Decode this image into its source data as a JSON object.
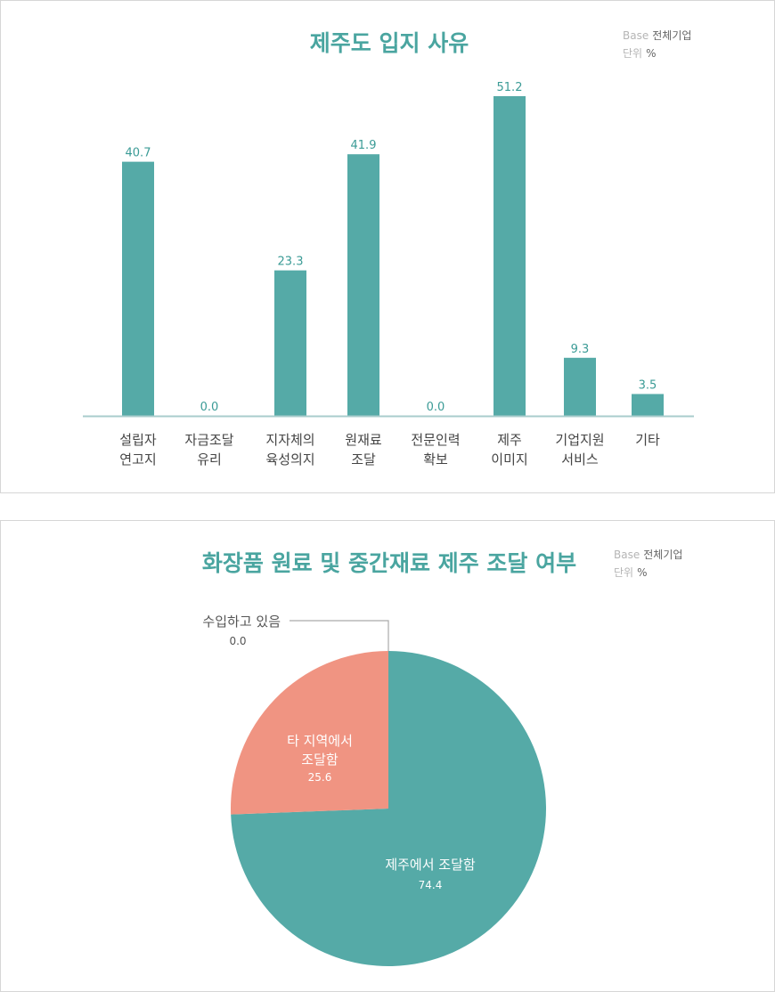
{
  "charts": {
    "location_reasons": {
      "title": "제주도 입지 사유",
      "base_label": "Base",
      "base_value": "전체기업",
      "unit_label": "단위",
      "unit_value": "%"
    },
    "sourcing": {
      "title": "화장품 원료 및 중간재료 제주 조달 여부",
      "base_label": "Base",
      "base_value": "전체기업",
      "unit_label": "단위",
      "unit_value": "%"
    }
  },
  "chart_data": [
    {
      "type": "bar",
      "title": "제주도 입지 사유",
      "unit": "%",
      "categories": [
        [
          "설립자",
          "연고지"
        ],
        [
          "자금조달",
          "유리"
        ],
        [
          "지자체의",
          "육성의지"
        ],
        [
          "원재료",
          "조달"
        ],
        [
          "전문인력",
          "확보"
        ],
        [
          "제주",
          "이미지"
        ],
        [
          "기업지원",
          "서비스"
        ],
        [
          "기타"
        ]
      ],
      "values": [
        40.7,
        0.0,
        23.3,
        41.9,
        0.0,
        51.2,
        9.3,
        3.5
      ],
      "value_labels": [
        "40.7",
        "0.0",
        "23.3",
        "41.9",
        "0.0",
        "51.2",
        "9.3",
        "3.5"
      ],
      "ylim": [
        0,
        51.2
      ],
      "grid": false,
      "color": "#55aaa7"
    },
    {
      "type": "pie",
      "title": "화장품 원료 및 중간재료 제주 조달 여부",
      "unit": "%",
      "slices": [
        {
          "label": "제주에서 조달함",
          "value": 74.4,
          "value_label": "74.4",
          "color": "#55aaa7"
        },
        {
          "label": "타 지역에서 조달함",
          "label_lines": [
            "타 지역에서",
            "조달함"
          ],
          "value": 25.6,
          "value_label": "25.6",
          "color": "#f09482"
        },
        {
          "label": "수입하고 있음",
          "value": 0.0,
          "value_label": "0.0",
          "color": "#999999"
        }
      ]
    }
  ]
}
